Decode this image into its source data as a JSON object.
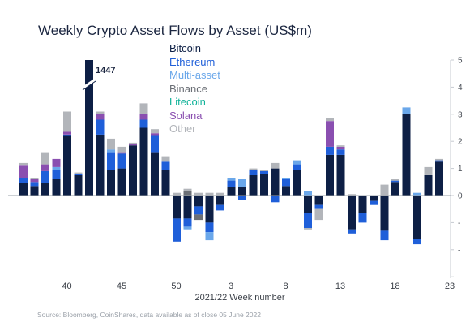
{
  "chart_data": {
    "type": "bar",
    "stacked": true,
    "title": "Weekly Crypto Asset Flows by Asset (US$m)",
    "xlabel": "2021/22 Week number",
    "source": "Source: Bloomberg, CoinShares, data available as of close 05 June 2022",
    "ylim": [
      -3,
      5
    ],
    "yticks": [
      -3,
      -2,
      -1,
      0,
      1,
      2,
      3,
      4,
      5
    ],
    "ytick_labels": [
      "-",
      "-",
      "-",
      "0",
      "1",
      "2",
      "3",
      "4",
      "5"
    ],
    "legend_position": "top-center",
    "annotations": [
      {
        "text": "1447",
        "week_index": 6
      }
    ],
    "x_tick_labels": [
      "40",
      "45",
      "50",
      "3",
      "8",
      "13",
      "18",
      "23"
    ],
    "x_tick_indices": [
      3,
      8,
      13,
      18,
      23,
      28,
      33,
      38
    ],
    "weeks_count": 39,
    "series": [
      {
        "name": "Bitcoin",
        "color": "#0d1f45",
        "values": [
          0.45,
          0.35,
          0.45,
          0.6,
          2.2,
          0.75,
          5.0,
          2.25,
          0.95,
          1.0,
          1.85,
          2.5,
          1.6,
          0.95,
          -0.85,
          -0.85,
          -0.4,
          -1.0,
          -0.35,
          0.3,
          0.3,
          0.75,
          0.8,
          1.0,
          0.35,
          0.95,
          -0.65,
          -0.35,
          1.5,
          1.5,
          -1.25,
          -0.65,
          -0.2,
          -1.3,
          0.5,
          3.0,
          -1.6,
          0.75,
          1.25
        ]
      },
      {
        "name": "Ethereum",
        "color": "#1f5fd9",
        "values": [
          0.2,
          0.15,
          0.45,
          0.35,
          0.05,
          0.05,
          0.0,
          0.55,
          0.65,
          0.55,
          0.0,
          0.3,
          0.6,
          0.3,
          -0.85,
          -0.3,
          -0.3,
          -0.35,
          -0.2,
          0.25,
          -0.15,
          0.2,
          0.1,
          -0.25,
          0.25,
          0.2,
          -0.55,
          -0.15,
          0.3,
          0.2,
          -0.15,
          -0.35,
          -0.15,
          -0.35,
          0.05,
          0.0,
          -0.2,
          0.0,
          0.05
        ]
      },
      {
        "name": "Multi-asset",
        "color": "#6aa7ea",
        "values": [
          0.0,
          0.0,
          0.0,
          0.1,
          0.0,
          0.0,
          0.0,
          0.0,
          0.1,
          0.0,
          0.0,
          0.0,
          0.0,
          0.0,
          0.0,
          -0.1,
          0.0,
          -0.3,
          0.0,
          0.1,
          0.3,
          0.0,
          0.0,
          0.0,
          0.05,
          0.15,
          0.15,
          0.0,
          0.0,
          0.0,
          0.0,
          0.0,
          0.0,
          0.0,
          0.0,
          0.25,
          0.1,
          0.0,
          0.0
        ]
      },
      {
        "name": "Binance",
        "color": "#6b6f76",
        "values": [
          0.0,
          0.0,
          0.0,
          0.0,
          0.0,
          0.0,
          0.0,
          0.0,
          0.0,
          0.0,
          0.0,
          0.0,
          0.0,
          0.0,
          0.0,
          0.15,
          -0.2,
          0.0,
          0.0,
          0.0,
          0.0,
          0.0,
          0.0,
          0.0,
          0.0,
          0.0,
          0.0,
          0.0,
          0.0,
          0.0,
          0.0,
          0.0,
          0.0,
          0.0,
          0.0,
          0.0,
          0.0,
          0.0,
          0.0
        ]
      },
      {
        "name": "Litecoin",
        "color": "#12b39a",
        "values": [
          0.0,
          0.0,
          0.0,
          0.0,
          0.0,
          0.0,
          0.0,
          0.0,
          0.0,
          0.0,
          0.0,
          0.0,
          0.0,
          0.0,
          0.0,
          0.0,
          0.0,
          0.0,
          0.0,
          0.0,
          0.0,
          0.0,
          0.0,
          0.0,
          0.0,
          0.0,
          0.0,
          0.0,
          0.0,
          0.0,
          0.0,
          0.0,
          0.0,
          0.0,
          0.0,
          0.0,
          0.0,
          0.0,
          0.0
        ]
      },
      {
        "name": "Solana",
        "color": "#8a4fb0",
        "values": [
          0.45,
          0.1,
          0.25,
          0.3,
          0.1,
          0.0,
          0.0,
          0.2,
          0.0,
          0.05,
          0.05,
          0.2,
          0.1,
          0.0,
          0.0,
          0.0,
          0.0,
          0.0,
          0.0,
          0.0,
          0.0,
          0.0,
          0.0,
          0.0,
          0.0,
          0.0,
          0.0,
          0.0,
          0.95,
          0.1,
          0.0,
          0.0,
          0.0,
          0.0,
          0.0,
          0.0,
          0.0,
          0.0,
          0.0
        ]
      },
      {
        "name": "Other",
        "color": "#b2b5ba",
        "values": [
          0.1,
          0.05,
          0.45,
          0.0,
          0.75,
          0.05,
          0.0,
          0.1,
          0.4,
          0.2,
          0.05,
          0.4,
          0.15,
          0.2,
          0.1,
          0.1,
          0.1,
          0.1,
          0.1,
          0.0,
          0.0,
          0.05,
          0.05,
          0.2,
          0.0,
          0.0,
          -0.05,
          -0.4,
          0.1,
          0.05,
          0.05,
          0.0,
          0.0,
          0.4,
          0.05,
          0.0,
          0.0,
          0.3,
          0.05
        ]
      }
    ]
  }
}
